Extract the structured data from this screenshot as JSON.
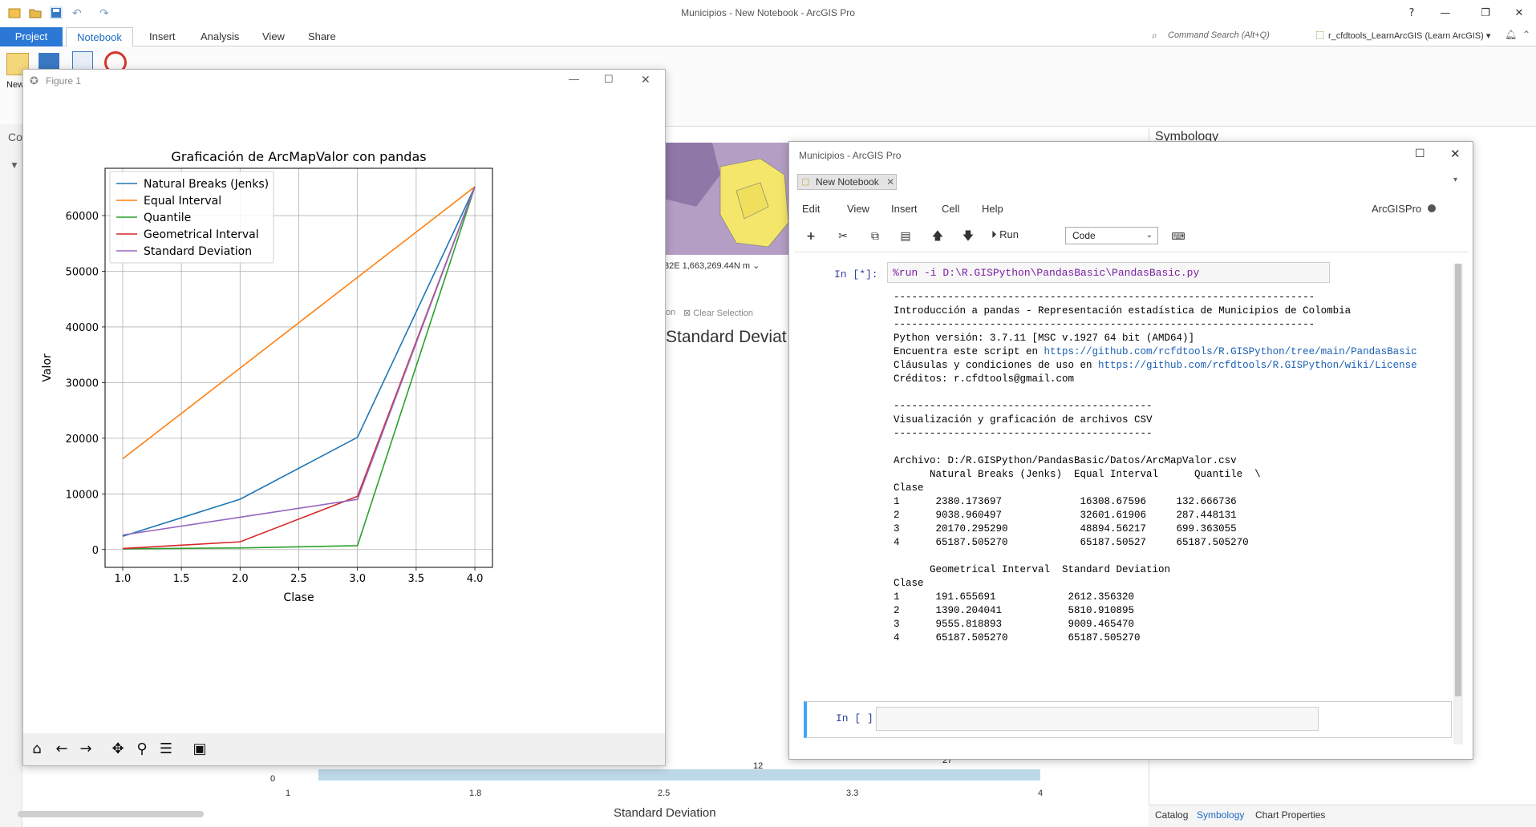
{
  "app": {
    "window_title": "Municipios - New Notebook - ArcGIS Pro",
    "tabs": [
      "Project",
      "Notebook",
      "Insert",
      "Analysis",
      "View",
      "Share"
    ],
    "command_search": "Command Search (Alt+Q)",
    "user": "r_cfdtools_LearnArcGIS (Learn ArcGIS) ▾",
    "help": "?",
    "ribbon_new_label": "New",
    "left_pane_label": "Co",
    "symbology_title": "Symbology",
    "bottom_tabs": [
      "Catalog",
      "Symbology",
      "Chart Properties"
    ],
    "coord_readout": "32E 1,663,269.44N m",
    "clear_selection": "Clear Selection",
    "clear_selection_prefix": "on",
    "bg_chart_title": "Standard Deviat",
    "histogram": {
      "xlabel": "Standard Deviation",
      "ticks": [
        "1",
        "1.8",
        "2.5",
        "3.3",
        "4"
      ],
      "y0": "0",
      "count_12": "12",
      "count_27": "27"
    }
  },
  "figure": {
    "window_title": "Figure 1",
    "toolbar": [
      "home-icon",
      "back-icon",
      "forward-icon",
      "pan-icon",
      "zoom-icon",
      "configure-icon",
      "save-icon"
    ],
    "chart_data": {
      "type": "line",
      "title": "Graficación de ArcMapValor con pandas",
      "xlabel": "Clase",
      "ylabel": "Valor",
      "x": [
        1,
        2,
        3,
        4
      ],
      "xlim": [
        0.85,
        4.15
      ],
      "ylim": [
        -3200,
        68500
      ],
      "xticks": [
        "1.0",
        "1.5",
        "2.0",
        "2.5",
        "3.0",
        "3.5",
        "4.0"
      ],
      "yticks": [
        "0",
        "10000",
        "20000",
        "30000",
        "40000",
        "50000",
        "60000"
      ],
      "grid": true,
      "legend_position": "upper-left",
      "series": [
        {
          "name": "Natural Breaks (Jenks)",
          "color": "#1f77b4",
          "values": [
            2380.173697,
            9038.960497,
            20170.29529,
            65187.50527
          ]
        },
        {
          "name": "Equal Interval",
          "color": "#ff7f0e",
          "values": [
            16308.67596,
            32601.61906,
            48894.56217,
            65187.50527
          ]
        },
        {
          "name": "Quantile",
          "color": "#2ca02c",
          "values": [
            132.666736,
            287.448131,
            699.363055,
            65187.50527
          ]
        },
        {
          "name": "Geometrical Interval",
          "color": "#d62728",
          "values": [
            191.655691,
            1390.204041,
            9555.818893,
            65187.50527
          ]
        },
        {
          "name": "Standard Deviation",
          "color": "#9467bd",
          "values": [
            2612.35632,
            5810.910895,
            9009.46547,
            65187.50527
          ]
        }
      ]
    }
  },
  "notebook": {
    "window_title": "Municipios - ArcGIS Pro",
    "tab_label": "New Notebook",
    "menu": [
      "Edit",
      "View",
      "Insert",
      "Cell",
      "Help"
    ],
    "kernel": "ArcGISPro",
    "run_label": "Run",
    "cell_type": "Code",
    "cell1_prompt": "In [*]:",
    "cell1_code": "%run -i D:\\R.GISPython\\PandasBasic\\PandasBasic.py",
    "cell2_prompt": "In [ ]:",
    "output": {
      "sep1": "----------------------------------------------------------------------",
      "intro": "Introducción a pandas - Representación estadística de Municipios de Colombia",
      "sep2": "----------------------------------------------------------------------",
      "python": "Python versión: 3.7.11 [MSC v.1927 64 bit (AMD64)]",
      "script_prefix": "Encuentra este script en ",
      "script_link": "https://github.com/rcfdtools/R.GISPython/tree/main/PandasBasic",
      "terms_prefix": "Cláusulas y condiciones de uso en ",
      "terms_link": "https://github.com/rcfdtools/R.GISPython/wiki/License",
      "credits": "Créditos: r.cfdtools@gmail.com",
      "sep3": "-------------------------------------------",
      "viz": "Visualización y graficación de archivos CSV",
      "sep4": "-------------------------------------------",
      "archivo": "Archivo: D:/R.GISPython/PandasBasic/Datos/ArcMapValor.csv",
      "table1_header": "      Natural Breaks (Jenks)  Equal Interval      Quantile  \\",
      "table_index_name": "Clase",
      "table1_rows": [
        "1      2380.173697             16308.67596     132.666736",
        "2      9038.960497             32601.61906     287.448131",
        "3      20170.295290            48894.56217     699.363055",
        "4      65187.505270            65187.50527     65187.505270"
      ],
      "table2_header": "      Geometrical Interval  Standard Deviation",
      "table2_rows": [
        "1      191.655691            2612.356320",
        "2      1390.204041           5810.910895",
        "3      9555.818893           9009.465470",
        "4      65187.505270          65187.505270"
      ]
    }
  }
}
